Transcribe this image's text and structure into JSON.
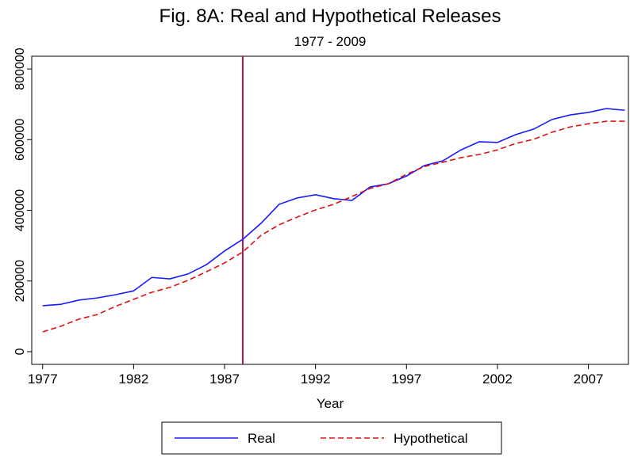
{
  "chart_data": {
    "type": "line",
    "title": "Fig. 8A: Real and Hypothetical Releases",
    "subtitle": "1977 - 2009",
    "x_label": "Year",
    "x": [
      1977,
      1978,
      1979,
      1980,
      1981,
      1982,
      1983,
      1984,
      1985,
      1986,
      1987,
      1988,
      1989,
      1990,
      1991,
      1992,
      1993,
      1994,
      1995,
      1996,
      1997,
      1998,
      1999,
      2000,
      2001,
      2002,
      2003,
      2004,
      2005,
      2006,
      2007,
      2008,
      2009
    ],
    "series": [
      {
        "name": "Real",
        "color": "#1a1aff",
        "dashed": false,
        "values": [
          130000,
          134000,
          146000,
          152000,
          161000,
          172000,
          210000,
          206000,
          220000,
          246000,
          285000,
          318000,
          363000,
          417000,
          435000,
          444000,
          433000,
          428000,
          466000,
          475000,
          497000,
          527000,
          540000,
          571000,
          594000,
          592000,
          614000,
          630000,
          657000,
          670000,
          677000,
          688000,
          683000
        ]
      },
      {
        "name": "Hypothetical",
        "color": "#e01010",
        "dashed": true,
        "values": [
          56000,
          72000,
          92000,
          105000,
          128000,
          148000,
          168000,
          182000,
          202000,
          226000,
          251000,
          282000,
          329000,
          359000,
          381000,
          401000,
          417000,
          439000,
          462000,
          475000,
          502000,
          524000,
          536000,
          549000,
          558000,
          571000,
          589000,
          601000,
          621000,
          636000,
          645000,
          652000,
          652000
        ]
      }
    ],
    "vline": 1988,
    "vline_color": "#b0174f",
    "xlim": [
      1976.4,
      2009.2
    ],
    "xticks": [
      1977,
      1982,
      1987,
      1992,
      1997,
      2002,
      2007
    ],
    "ylim": [
      -36000,
      836000
    ],
    "yticks": [
      0,
      200000,
      400000,
      600000,
      800000
    ],
    "grid": false
  }
}
